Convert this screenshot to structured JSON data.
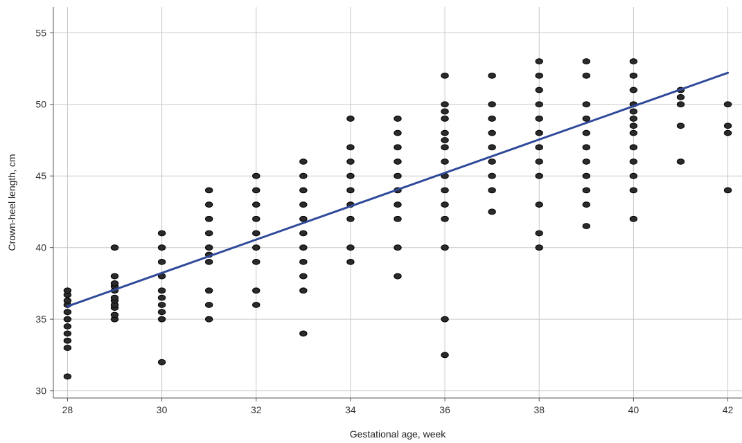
{
  "chart_data": {
    "type": "scatter",
    "title": "",
    "xlabel": "Gestational age, week",
    "ylabel": "Crown-heel length, cm",
    "xlim": [
      27.7,
      42.3
    ],
    "ylim": [
      29.5,
      56.8
    ],
    "x_ticks": [
      28,
      30,
      32,
      34,
      36,
      38,
      40,
      42
    ],
    "y_ticks": [
      30,
      35,
      40,
      45,
      50,
      55
    ],
    "grid": true,
    "legend": "none",
    "colors": {
      "point_fill": "#2b2b2b",
      "point_stroke": "#000000",
      "fit_line": "#2f4a9a",
      "grid": "#c8c8c8",
      "axis": "#555555"
    },
    "series": [
      {
        "type": "scatter",
        "points": [
          [
            28,
            31
          ],
          [
            28,
            33
          ],
          [
            28,
            33.5
          ],
          [
            28,
            34
          ],
          [
            28,
            34.5
          ],
          [
            28,
            35
          ],
          [
            28,
            35.5
          ],
          [
            28,
            36
          ],
          [
            28,
            36.3
          ],
          [
            28,
            36.7
          ],
          [
            28,
            37
          ],
          [
            29,
            35
          ],
          [
            29,
            35.3
          ],
          [
            29,
            35.8
          ],
          [
            29,
            36
          ],
          [
            29,
            36.3
          ],
          [
            29,
            36.5
          ],
          [
            29,
            37
          ],
          [
            29,
            37.3
          ],
          [
            29,
            37.5
          ],
          [
            29,
            38
          ],
          [
            29,
            40
          ],
          [
            30,
            32
          ],
          [
            30,
            35
          ],
          [
            30,
            35.5
          ],
          [
            30,
            36
          ],
          [
            30,
            36.5
          ],
          [
            30,
            37
          ],
          [
            30,
            38
          ],
          [
            30,
            39
          ],
          [
            30,
            40
          ],
          [
            30,
            41
          ],
          [
            31,
            35
          ],
          [
            31,
            36
          ],
          [
            31,
            37
          ],
          [
            31,
            39
          ],
          [
            31,
            39.5
          ],
          [
            31,
            40
          ],
          [
            31,
            41
          ],
          [
            31,
            42
          ],
          [
            31,
            43
          ],
          [
            31,
            44
          ],
          [
            32,
            36
          ],
          [
            32,
            37
          ],
          [
            32,
            39
          ],
          [
            32,
            40
          ],
          [
            32,
            41
          ],
          [
            32,
            42
          ],
          [
            32,
            43
          ],
          [
            32,
            44
          ],
          [
            32,
            45
          ],
          [
            33,
            34
          ],
          [
            33,
            37
          ],
          [
            33,
            38
          ],
          [
            33,
            39
          ],
          [
            33,
            40
          ],
          [
            33,
            41
          ],
          [
            33,
            42
          ],
          [
            33,
            43
          ],
          [
            33,
            44
          ],
          [
            33,
            45
          ],
          [
            33,
            46
          ],
          [
            34,
            39
          ],
          [
            34,
            40
          ],
          [
            34,
            42
          ],
          [
            34,
            43
          ],
          [
            34,
            44
          ],
          [
            34,
            45
          ],
          [
            34,
            46
          ],
          [
            34,
            47
          ],
          [
            34,
            49
          ],
          [
            35,
            38
          ],
          [
            35,
            40
          ],
          [
            35,
            42
          ],
          [
            35,
            43
          ],
          [
            35,
            44
          ],
          [
            35,
            45
          ],
          [
            35,
            46
          ],
          [
            35,
            47
          ],
          [
            35,
            48
          ],
          [
            35,
            49
          ],
          [
            36,
            32.5
          ],
          [
            36,
            35
          ],
          [
            36,
            40
          ],
          [
            36,
            42
          ],
          [
            36,
            43
          ],
          [
            36,
            44
          ],
          [
            36,
            45
          ],
          [
            36,
            46
          ],
          [
            36,
            47
          ],
          [
            36,
            47.5
          ],
          [
            36,
            48
          ],
          [
            36,
            49
          ],
          [
            36,
            49.5
          ],
          [
            36,
            50
          ],
          [
            36,
            52
          ],
          [
            37,
            42.5
          ],
          [
            37,
            44
          ],
          [
            37,
            45
          ],
          [
            37,
            46
          ],
          [
            37,
            47
          ],
          [
            37,
            48
          ],
          [
            37,
            49
          ],
          [
            37,
            50
          ],
          [
            37,
            52
          ],
          [
            38,
            40
          ],
          [
            38,
            41
          ],
          [
            38,
            43
          ],
          [
            38,
            45
          ],
          [
            38,
            46
          ],
          [
            38,
            47
          ],
          [
            38,
            48
          ],
          [
            38,
            49
          ],
          [
            38,
            50
          ],
          [
            38,
            51
          ],
          [
            38,
            52
          ],
          [
            38,
            53
          ],
          [
            39,
            41.5
          ],
          [
            39,
            43
          ],
          [
            39,
            44
          ],
          [
            39,
            45
          ],
          [
            39,
            46
          ],
          [
            39,
            47
          ],
          [
            39,
            48
          ],
          [
            39,
            49
          ],
          [
            39,
            50
          ],
          [
            39,
            52
          ],
          [
            39,
            53
          ],
          [
            40,
            42
          ],
          [
            40,
            44
          ],
          [
            40,
            45
          ],
          [
            40,
            46
          ],
          [
            40,
            47
          ],
          [
            40,
            48
          ],
          [
            40,
            48.5
          ],
          [
            40,
            49
          ],
          [
            40,
            49.5
          ],
          [
            40,
            50
          ],
          [
            40,
            51
          ],
          [
            40,
            52
          ],
          [
            40,
            53
          ],
          [
            41,
            46
          ],
          [
            41,
            48.5
          ],
          [
            41,
            50
          ],
          [
            41,
            50.5
          ],
          [
            41,
            51
          ],
          [
            42,
            44
          ],
          [
            42,
            48
          ],
          [
            42,
            48.5
          ],
          [
            42,
            50
          ]
        ]
      },
      {
        "type": "line",
        "points": [
          [
            28,
            35.9
          ],
          [
            42,
            52.2
          ]
        ]
      }
    ]
  }
}
